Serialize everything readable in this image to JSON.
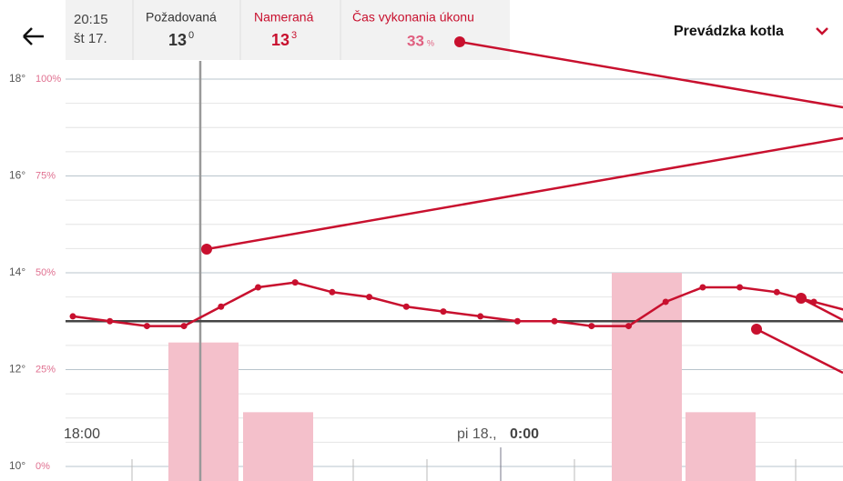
{
  "header": {
    "time": "20:15",
    "day": "št 17.",
    "required_label": "Požadovaná",
    "required_value": "13",
    "required_decimal": "0",
    "measured_label": "Nameraná",
    "measured_value": "13",
    "measured_decimal": "3",
    "duty_label": "Čas vykonania úkonu",
    "duty_value": "33",
    "duty_unit": "%",
    "mode": "Prevádzka kotla"
  },
  "chart_data": {
    "type": "line",
    "temp_ticks": [
      {
        "value": 18,
        "label": "18°"
      },
      {
        "value": 16,
        "label": "16°"
      },
      {
        "value": 14,
        "label": "14°"
      },
      {
        "value": 12,
        "label": "12°"
      },
      {
        "value": 10,
        "label": "10°"
      }
    ],
    "pct_ticks": [
      {
        "value": 100,
        "label": "100%"
      },
      {
        "value": 75,
        "label": "75%"
      },
      {
        "value": 50,
        "label": "50%"
      },
      {
        "value": 25,
        "label": "25%"
      },
      {
        "value": 0,
        "label": "0%"
      }
    ],
    "ylim": [
      10,
      18
    ],
    "y2lim": [
      0,
      100
    ],
    "x_labels": [
      "18:00",
      "pi 18., ",
      "0:00"
    ],
    "series": [
      {
        "name": "Nameraná",
        "color": "#c8102e",
        "values": [
          13.1,
          13.0,
          12.9,
          12.9,
          13.3,
          13.7,
          13.8,
          13.6,
          13.5,
          13.3,
          13.2,
          13.1,
          13.0,
          13.0,
          12.9,
          12.9,
          13.4,
          13.7,
          13.7,
          13.6,
          13.4,
          13.2
        ]
      }
    ],
    "setpoint": 13.0,
    "bars": {
      "color": "#f4c0cb",
      "values": [
        32,
        14,
        50,
        14
      ]
    }
  }
}
